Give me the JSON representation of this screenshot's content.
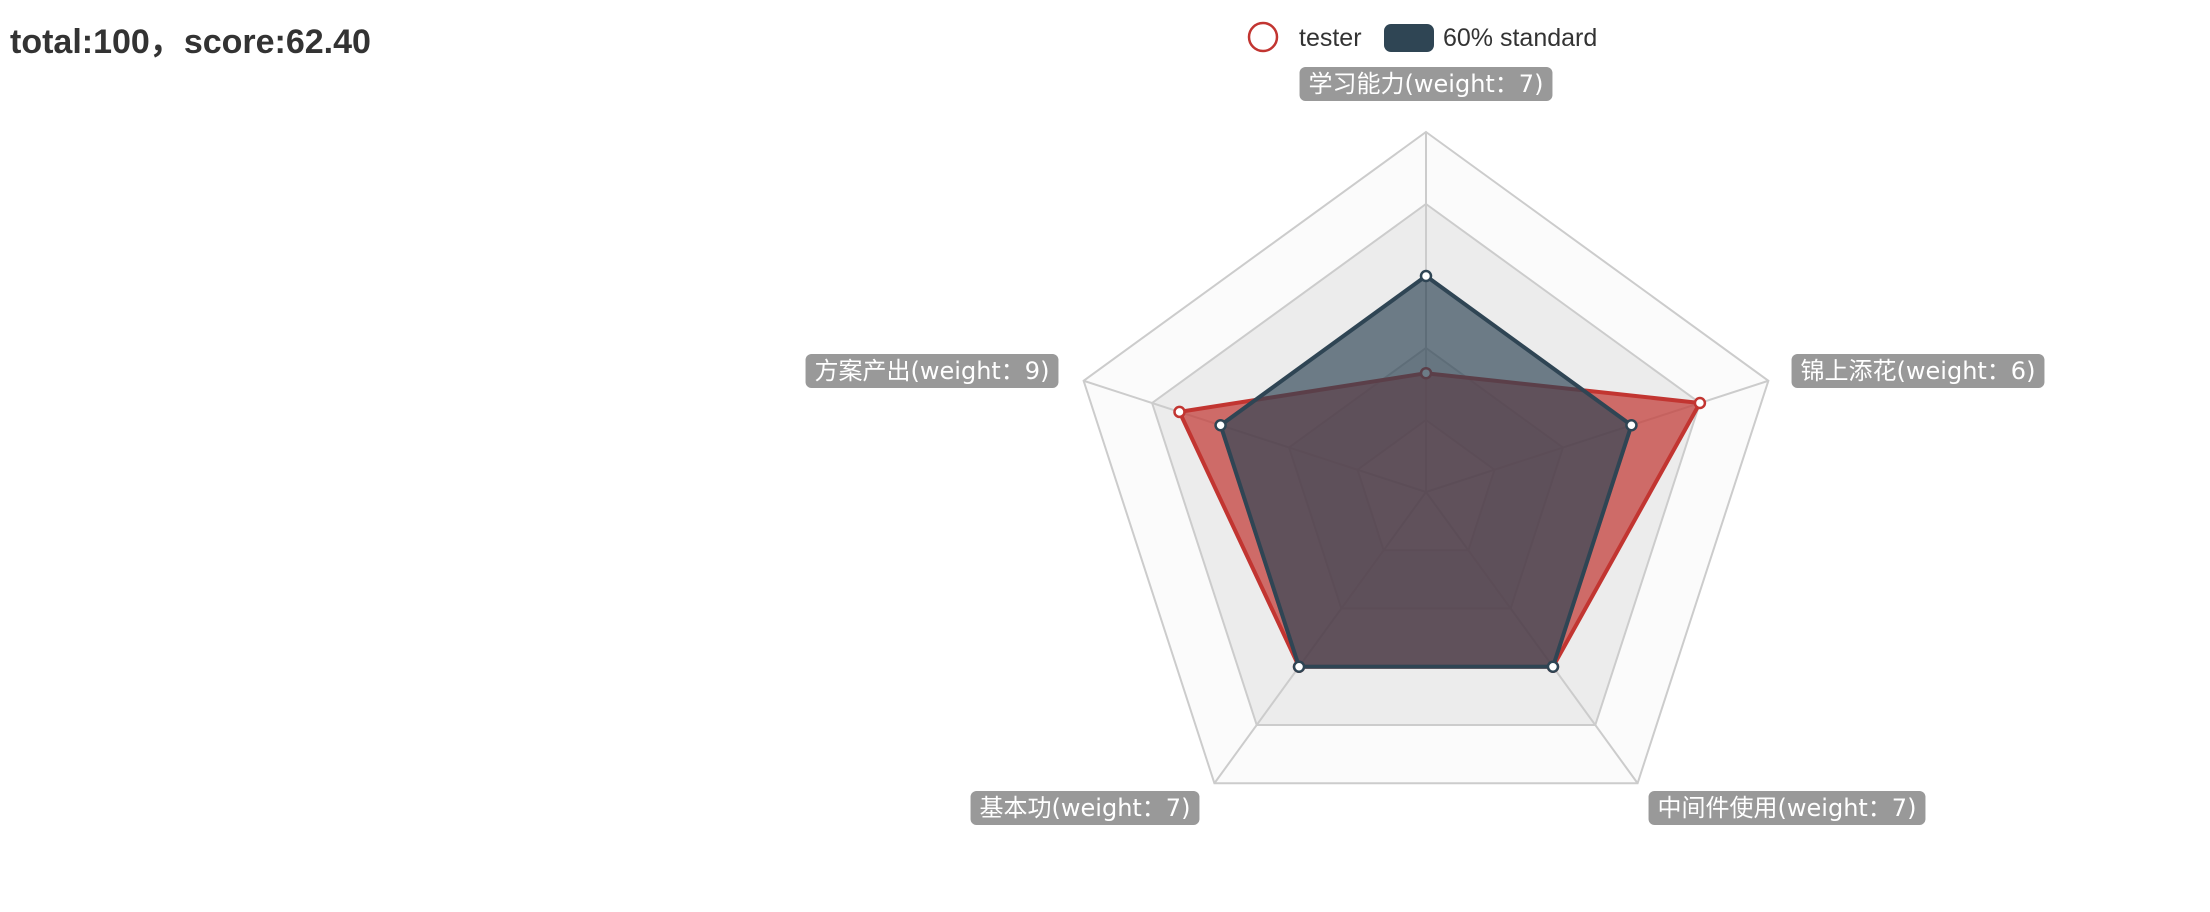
{
  "header": {
    "title": "total:100，score:62.40"
  },
  "chart_data": {
    "type": "radar",
    "indicators": [
      "学习能力(weight：7)",
      "锦上添花(weight：6)",
      "中间件使用(weight：7)",
      "基本功(weight：7)",
      "方案产出(weight：9)"
    ],
    "max": 1.0,
    "split_number": 5,
    "series": [
      {
        "name": "tester",
        "values": [
          0.33,
          0.8,
          0.6,
          0.6,
          0.72
        ],
        "color": "#c23531"
      },
      {
        "name": "60% standard",
        "values": [
          0.6,
          0.6,
          0.6,
          0.6,
          0.6
        ],
        "color": "#2f4554"
      }
    ],
    "legend_position": "top",
    "split_area_colors": [
      "#fbfbfb",
      "#ececec"
    ],
    "axis_line_color": "#cccccc",
    "label_background": "#999999",
    "label_color": "#ffffff"
  }
}
